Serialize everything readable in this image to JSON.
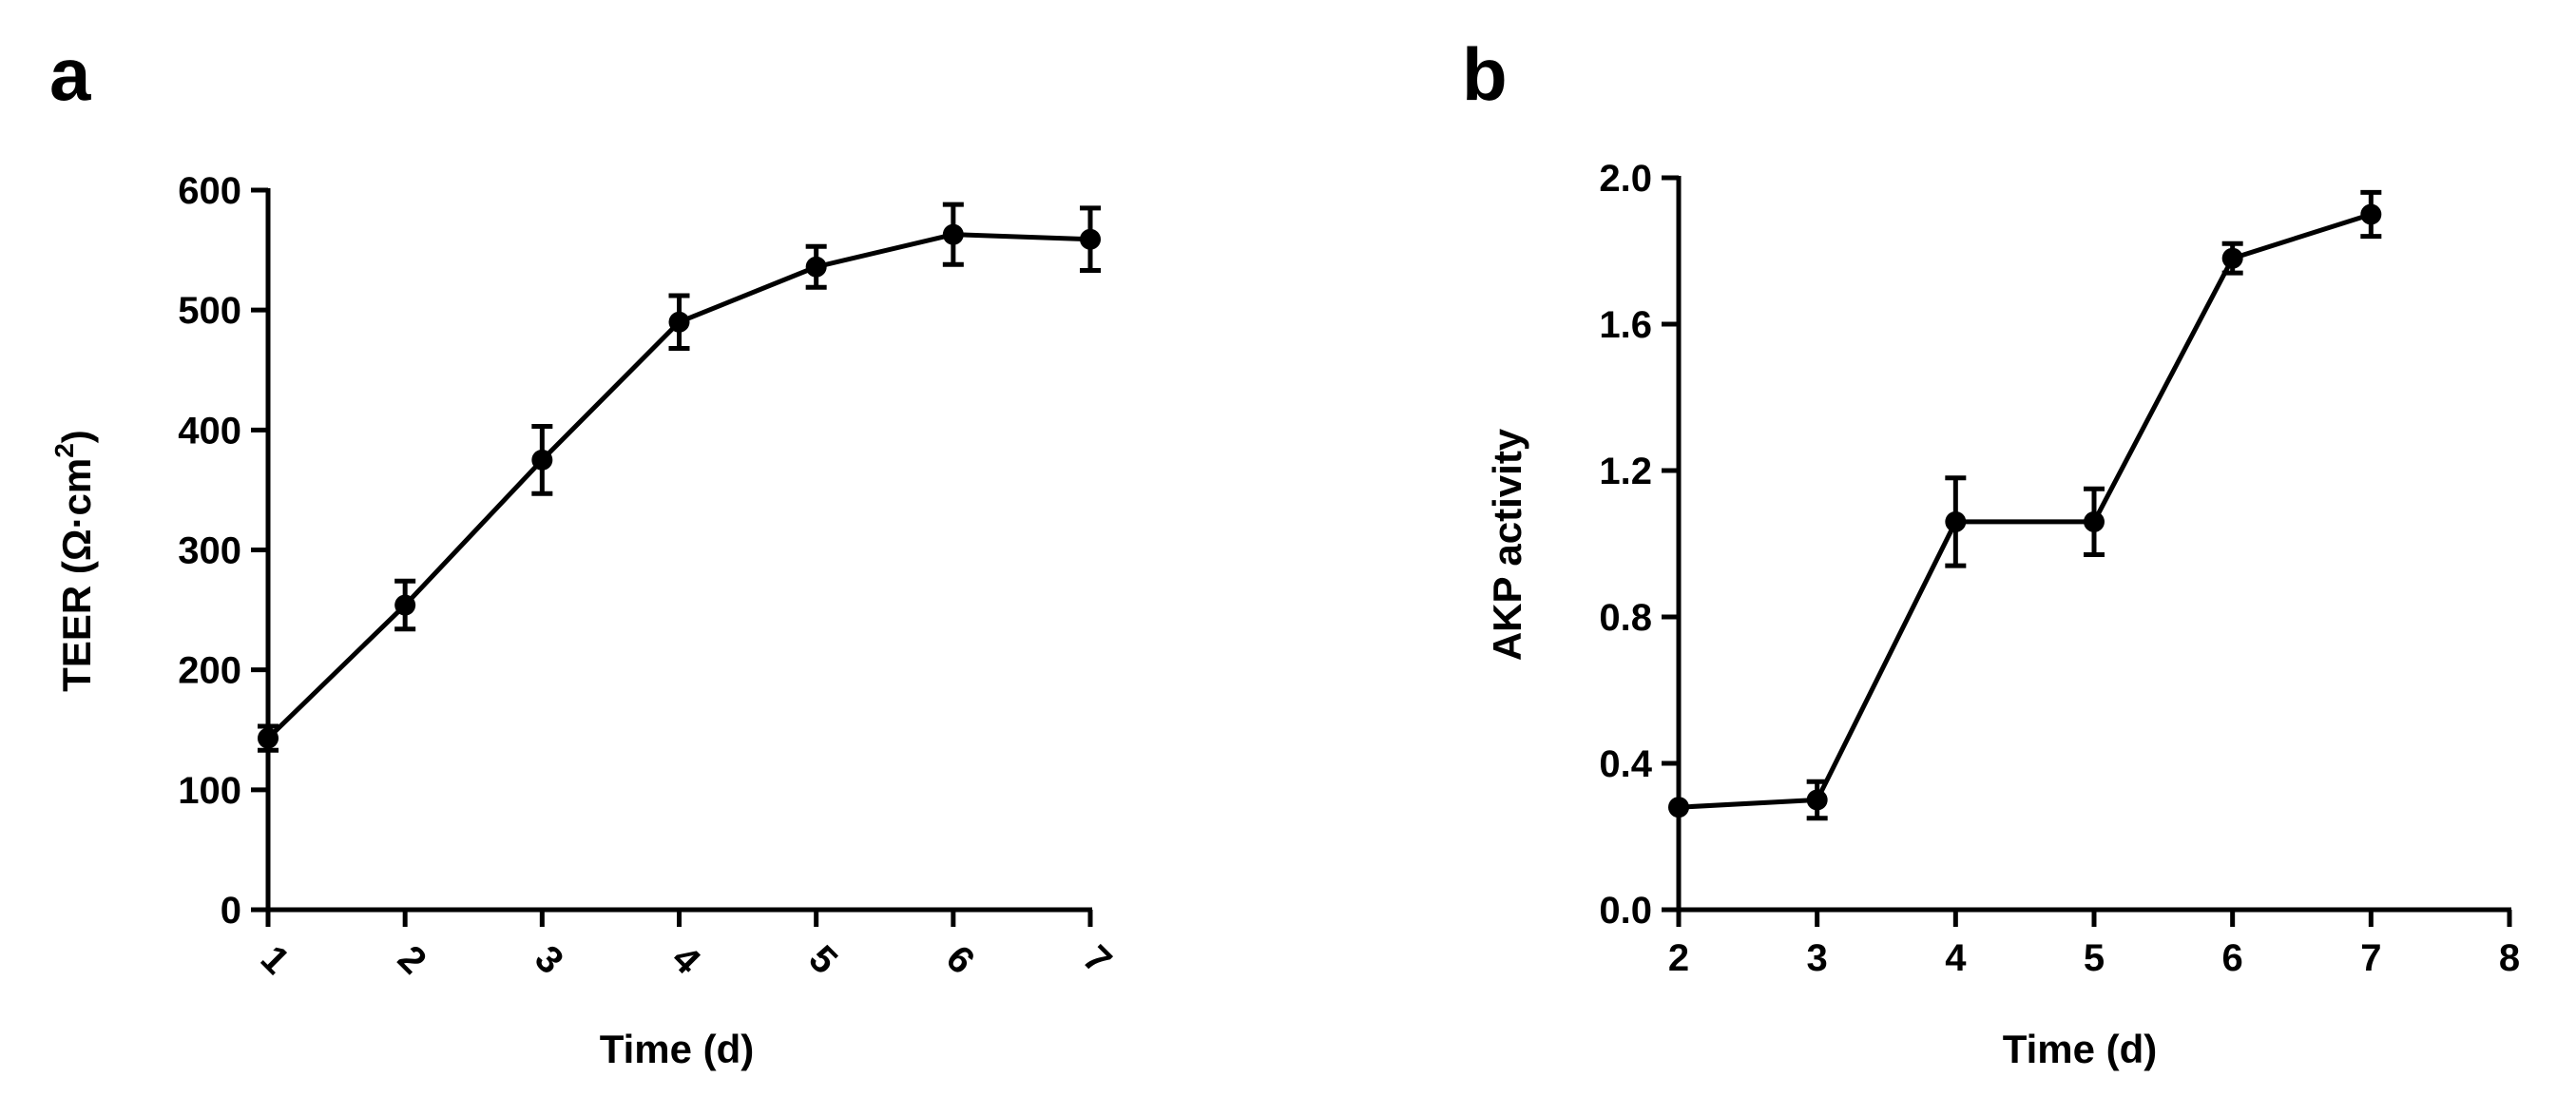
{
  "chart_data": [
    {
      "panel_label": "a",
      "type": "line",
      "xlabel": "Time (d)",
      "ylabel_main": "TEER (Ω·cm",
      "ylabel_sup": "2",
      "ylabel_close": ")",
      "xlim": [
        1,
        7
      ],
      "ylim": [
        0,
        600
      ],
      "xticks": [
        "1",
        "2",
        "3",
        "4",
        "5",
        "6",
        "7"
      ],
      "xtick_values": [
        1,
        2,
        3,
        4,
        5,
        6,
        7
      ],
      "xtick_rotation": 45,
      "yticks": [
        "0",
        "100",
        "200",
        "300",
        "400",
        "500",
        "600"
      ],
      "ytick_values": [
        0,
        100,
        200,
        300,
        400,
        500,
        600
      ],
      "x": [
        1,
        2,
        3,
        4,
        5,
        6,
        7
      ],
      "y": [
        143,
        254,
        375,
        490,
        536,
        563,
        559
      ],
      "err": [
        10,
        20,
        28,
        22,
        17,
        25,
        26
      ]
    },
    {
      "panel_label": "b",
      "type": "line",
      "xlabel": "Time (d)",
      "ylabel_main": "AKP activity",
      "xlim": [
        2,
        8
      ],
      "ylim": [
        0,
        2.0
      ],
      "xticks": [
        "2",
        "3",
        "4",
        "5",
        "6",
        "7",
        "8"
      ],
      "xtick_values": [
        2,
        3,
        4,
        5,
        6,
        7,
        8
      ],
      "xtick_rotation": 0,
      "yticks": [
        "0.0",
        "0.4",
        "0.8",
        "1.2",
        "1.6",
        "2.0"
      ],
      "ytick_values": [
        0,
        0.4,
        0.8,
        1.2,
        1.6,
        2.0
      ],
      "x": [
        2,
        3,
        4,
        5,
        6,
        7
      ],
      "y": [
        0.28,
        0.3,
        1.06,
        1.06,
        1.78,
        1.9
      ],
      "err": [
        0.0,
        0.05,
        0.12,
        0.09,
        0.04,
        0.06
      ]
    }
  ]
}
